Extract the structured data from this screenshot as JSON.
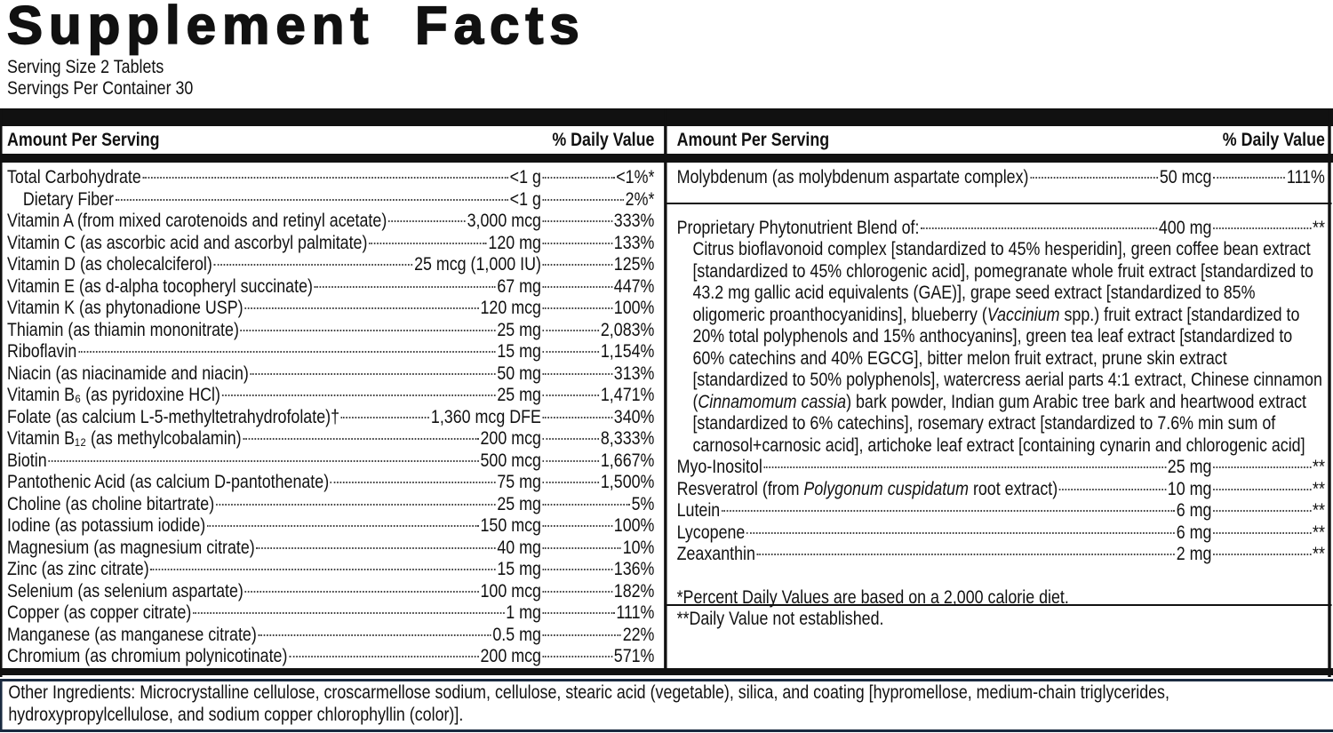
{
  "title": "Supplement Facts",
  "serving_size": "Serving Size 2 Tablets",
  "servings_per_container": "Servings Per Container 30",
  "left": {
    "header": {
      "amount": "Amount Per Serving",
      "dv": "% Daily Value"
    },
    "rows": [
      {
        "name": "Total Carbohydrate",
        "amount": "<1 g",
        "dv": "<1%*",
        "sub": [
          {
            "name": "Dietary Fiber",
            "amount": "<1 g",
            "dv": "2%*"
          }
        ]
      },
      {
        "name": "Vitamin A (from mixed carotenoids and retinyl acetate)",
        "amount": "3,000 mcg",
        "dv": "333%"
      },
      {
        "name": "Vitamin C (as ascorbic acid and ascorbyl palmitate)",
        "amount": "120 mg",
        "dv": "133%"
      },
      {
        "name": "Vitamin D (as cholecalciferol)",
        "amount": "25 mcg (1,000 IU)",
        "dv": "125%"
      },
      {
        "name": "Vitamin E (as d-alpha tocopheryl succinate)",
        "amount": "67 mg",
        "dv": "447%"
      },
      {
        "name": "Vitamin K (as phytonadione USP)",
        "amount": "120 mcg",
        "dv": "100%"
      },
      {
        "name": "Thiamin (as thiamin mononitrate)",
        "amount": "25 mg",
        "dv": "2,083%"
      },
      {
        "name": "Riboflavin",
        "amount": "15 mg",
        "dv": "1,154%"
      },
      {
        "name": "Niacin (as niacinamide and niacin)",
        "amount": "50 mg",
        "dv": "313%"
      },
      {
        "name": "Vitamin B₆ (as pyridoxine HCl)",
        "amount": "25 mg",
        "dv": "1,471%"
      },
      {
        "name": "Folate (as calcium L-5-methyltetrahydrofolate)†",
        "amount": "1,360 mcg DFE",
        "dv": "340%"
      },
      {
        "name": "Vitamin B₁₂ (as methylcobalamin)",
        "amount": "200 mcg",
        "dv": "8,333%"
      },
      {
        "name": "Biotin",
        "amount": "500 mcg",
        "dv": "1,667%"
      },
      {
        "name": "Pantothenic Acid (as calcium D-pantothenate)",
        "amount": "75 mg",
        "dv": "1,500%"
      },
      {
        "name": "Choline (as choline bitartrate)",
        "amount": "25 mg",
        "dv": "5%"
      },
      {
        "name": "Iodine (as potassium iodide)",
        "amount": "150 mcg",
        "dv": "100%"
      },
      {
        "name": "Magnesium (as magnesium citrate)",
        "amount": "40 mg",
        "dv": "10%"
      },
      {
        "name": "Zinc (as zinc citrate)",
        "amount": "15 mg",
        "dv": "136%"
      },
      {
        "name": "Selenium (as selenium aspartate)",
        "amount": "100 mcg",
        "dv": "182%"
      },
      {
        "name": "Copper (as copper citrate)",
        "amount": "1 mg",
        "dv": "111%"
      },
      {
        "name": "Manganese (as manganese citrate)",
        "amount": "0.5 mg",
        "dv": "22%"
      },
      {
        "name": "Chromium (as chromium polynicotinate)",
        "amount": "200 mcg",
        "dv": "571%"
      }
    ]
  },
  "right": {
    "header": {
      "amount": "Amount Per Serving",
      "dv": "% Daily Value"
    },
    "top_row": {
      "name": "Molybdenum (as molybdenum aspartate complex)",
      "amount": "50 mcg",
      "dv": "111%"
    },
    "blend": {
      "name": "Proprietary Phytonutrient Blend of:",
      "amount": "400 mg",
      "dv": "**",
      "description": [
        "Citrus bioflavonoid complex [standardized to 45% hesperidin], green coffee bean extract [standardized to 45% chlorogenic acid], pomegranate whole fruit extract [standardized to 43.2 mg gallic acid equivalents (GAE)], grape seed extract [standardized to 85% oligomeric proanthocyanidins], blueberry (",
        "Vaccinium",
        " spp.) fruit extract [standardized to 20% total polyphenols and 15% anthocyanins], green tea leaf extract [standardized to 60% catechins and 40% EGCG], bitter melon fruit extract, prune skin extract [standardized to 50% polyphenols], watercress aerial parts 4:1 extract, Chinese cinnamon (",
        "Cinnamomum cassia",
        ") bark powder, Indian gum Arabic tree bark and heartwood extract [standardized to 6% catechins], rosemary extract [standardized to 7.6% min sum of carnosol+carnosic acid], artichoke leaf extract [containing cynarin and chlorogenic acid]"
      ]
    },
    "rows": [
      {
        "name": "Myo-Inositol",
        "amount": "25 mg",
        "dv": "**"
      },
      {
        "name": [
          "Resveratrol (from ",
          "Polygonum cuspidatum",
          " root extract)"
        ],
        "amount": "10 mg",
        "dv": "**"
      },
      {
        "name": "Lutein",
        "amount": "6 mg",
        "dv": "**"
      },
      {
        "name": "Lycopene",
        "amount": "6 mg",
        "dv": "**"
      },
      {
        "name": "Zeaxanthin",
        "amount": "2 mg",
        "dv": "**"
      }
    ],
    "footnotes": [
      "*Percent Daily Values are based on a 2,000 calorie diet.",
      "**Daily Value not established."
    ]
  },
  "other_ingredients": "Other Ingredients: Microcrystalline cellulose, croscarmellose sodium, cellulose, stearic acid (vegetable), silica, and coating [hypromellose, medium-chain triglycerides, hydroxypropylcellulose, and sodium copper chlorophyllin (color)]."
}
